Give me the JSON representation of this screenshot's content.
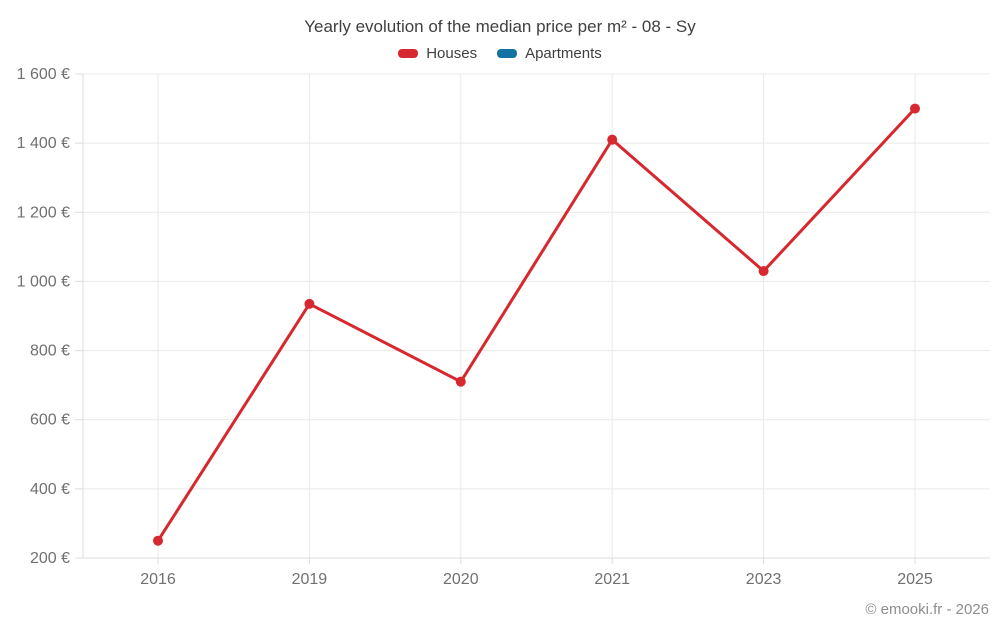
{
  "title": "Yearly evolution of the median price per m² - 08 - Sy",
  "footer": "© emooki.fr - 2026",
  "legend": {
    "items": [
      {
        "label": "Houses",
        "color": "#d7282f"
      },
      {
        "label": "Apartments",
        "color": "#1371a4"
      }
    ]
  },
  "colors": {
    "houses": "#d7282f",
    "apartments": "#1371a4",
    "grid": "#e9e9e9",
    "axis": "#dcdcdc",
    "tick_text": "#707070",
    "title_text": "#3f3f3f",
    "footer_text": "#8e8e8e"
  },
  "chart_data": {
    "type": "line",
    "title": "Yearly evolution of the median price per m² - 08 - Sy",
    "categories": [
      "2016",
      "2019",
      "2020",
      "2021",
      "2023",
      "2025"
    ],
    "series": [
      {
        "name": "Houses",
        "color": "#d7282f",
        "values": [
          250,
          935,
          710,
          1410,
          1030,
          1500
        ]
      },
      {
        "name": "Apartments",
        "color": "#1371a4",
        "values": []
      }
    ],
    "xlabel": "",
    "ylabel": "",
    "ylim": [
      200,
      1600
    ],
    "y_tick_step": 200,
    "y_tick_labels": [
      "200 €",
      "400 €",
      "600 €",
      "800 €",
      "1 000 €",
      "1 200 €",
      "1 400 €",
      "1 600 €"
    ],
    "currency_suffix": "€",
    "grid": true,
    "legend_position": "top"
  }
}
